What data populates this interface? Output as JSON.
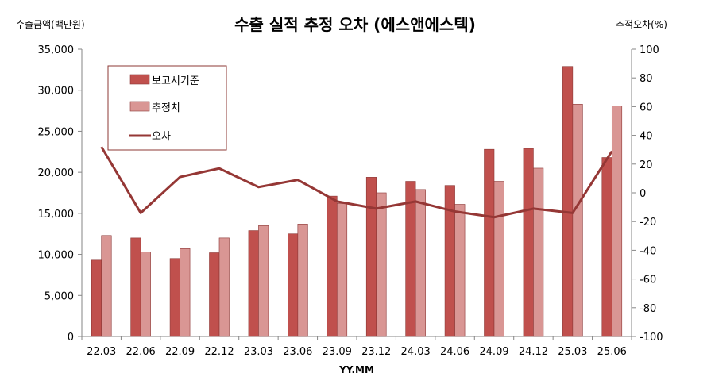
{
  "chart_data": {
    "type": "bar",
    "title": "수출 실적 추정 오차 (에스앤에스텍)",
    "ylabel": "수출금액(백만원)",
    "y2label": "추적오차(%)",
    "xlabel": "YY.MM",
    "categories": [
      "22.03",
      "22.06",
      "22.09",
      "22.12",
      "23.03",
      "23.06",
      "23.09",
      "23.12",
      "24.03",
      "24.06",
      "24.09",
      "24.12",
      "25.03",
      "25.06"
    ],
    "ylim": [
      0,
      35000
    ],
    "y2lim": [
      -100,
      100
    ],
    "yticks": [
      "0",
      "5,000",
      "10,000",
      "15,000",
      "20,000",
      "25,000",
      "30,000",
      "35,000"
    ],
    "y2ticks": [
      "-100",
      "-80",
      "-60",
      "-40",
      "-20",
      "0",
      "20",
      "40",
      "60",
      "80",
      "100"
    ],
    "series": [
      {
        "name": "보고서기준",
        "kind": "bar",
        "color": "#c0504d",
        "values": [
          9300,
          12000,
          9500,
          10200,
          12900,
          12500,
          17100,
          19400,
          18900,
          18400,
          22800,
          22900,
          32900,
          21800
        ]
      },
      {
        "name": "추정치",
        "kind": "bar",
        "color": "#d99694",
        "values": [
          12300,
          10300,
          10700,
          12000,
          13500,
          13700,
          16200,
          17500,
          17900,
          16100,
          18900,
          20500,
          28300,
          28100
        ]
      },
      {
        "name": "오차",
        "kind": "line",
        "axis": "right",
        "color": "#953735",
        "values": [
          32,
          -14,
          11,
          17,
          4,
          9,
          -6,
          -11,
          -6,
          -13,
          -17,
          -11,
          -14,
          29
        ]
      }
    ],
    "legend_position": "top-left",
    "grid": false
  }
}
